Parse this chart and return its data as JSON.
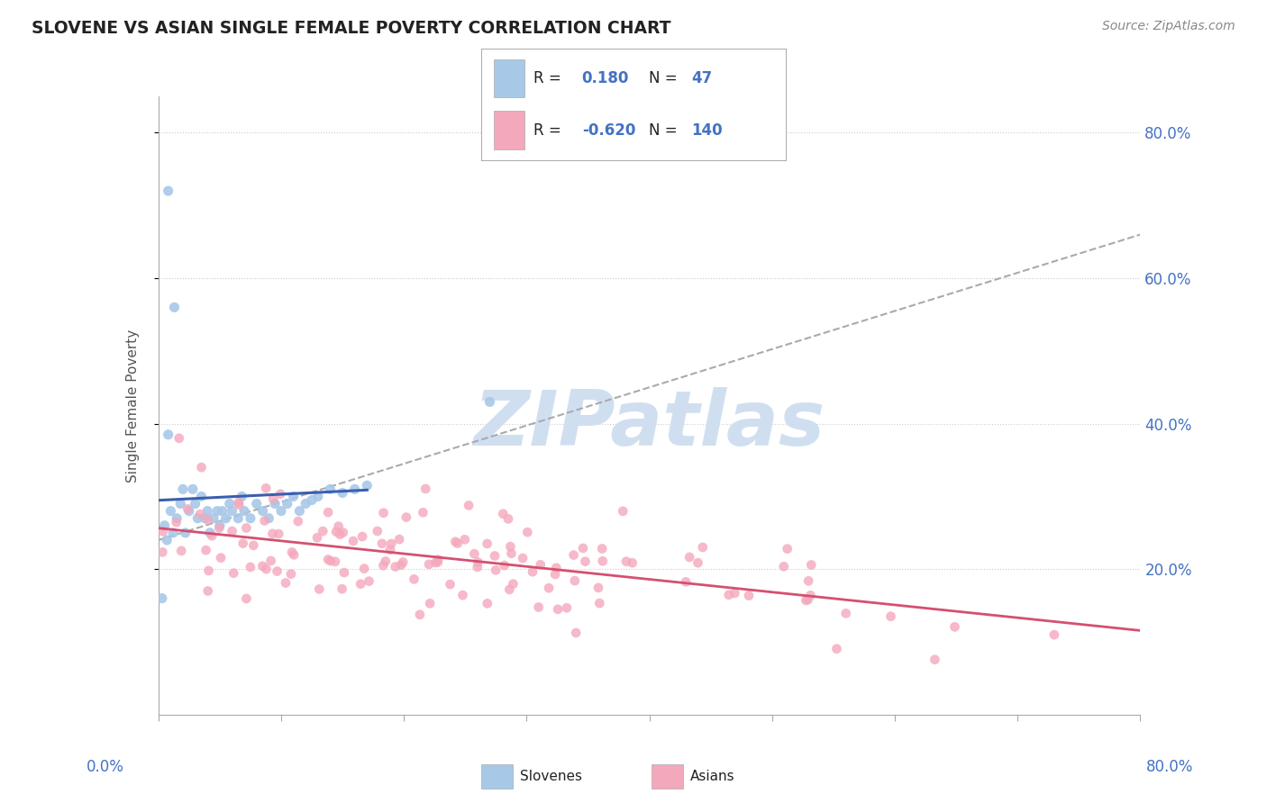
{
  "title": "SLOVENE VS ASIAN SINGLE FEMALE POVERTY CORRELATION CHART",
  "source": "Source: ZipAtlas.com",
  "ylabel": "Single Female Poverty",
  "legend_label1": "Slovenes",
  "legend_label2": "Asians",
  "R_slovene": 0.18,
  "N_slovene": 47,
  "R_asian": -0.62,
  "N_asian": 140,
  "slovene_color": "#a8c8e8",
  "asian_color": "#f4a8bc",
  "slovene_line_color": "#3a5fb0",
  "asian_line_color": "#d45070",
  "dash_line_color": "#aaaaaa",
  "watermark_color": "#d0dff0",
  "xlim": [
    0.0,
    0.8
  ],
  "ylim": [
    0.0,
    0.85
  ],
  "yticks": [
    0.2,
    0.4,
    0.6,
    0.8
  ],
  "right_ytick_labels": [
    "20.0%",
    "40.0%",
    "60.0%",
    "80.0%"
  ]
}
